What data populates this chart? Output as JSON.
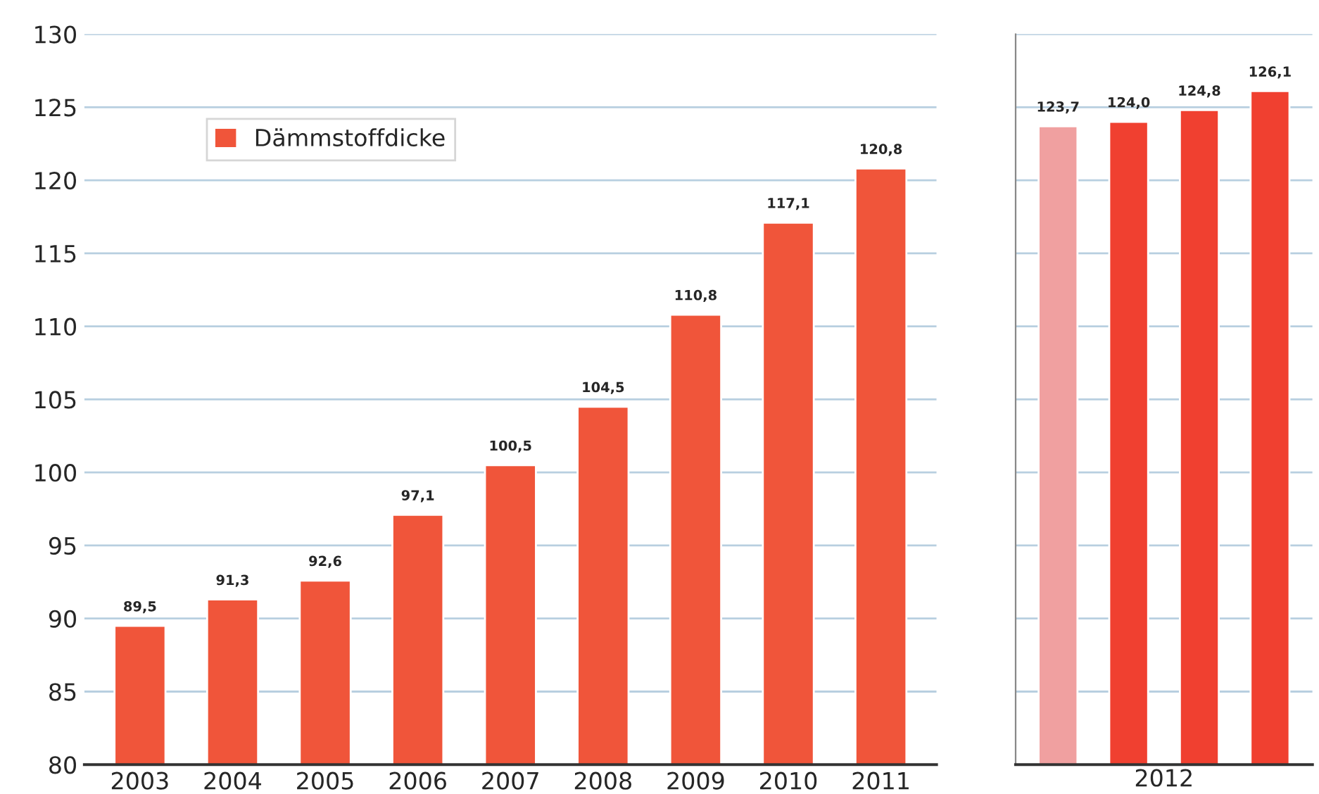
{
  "chart_data": [
    {
      "type": "bar",
      "categories": [
        "2003",
        "2004",
        "2005",
        "2006",
        "2007",
        "2008",
        "2009",
        "2010",
        "2011"
      ],
      "series": [
        {
          "name": "Dämmstoffdicke",
          "color": "#f0553a",
          "values": [
            89.5,
            91.3,
            92.6,
            97.1,
            100.5,
            104.5,
            110.8,
            117.1,
            120.8
          ],
          "value_labels": [
            "89,5",
            "91,3",
            "92,6",
            "97,1",
            "100,5",
            "104,5",
            "110,8",
            "117,1",
            "120,8"
          ]
        }
      ],
      "ylim": [
        80,
        130
      ],
      "yticks": [
        80,
        85,
        90,
        95,
        100,
        105,
        110,
        115,
        120,
        125,
        130
      ],
      "grid": "y",
      "legend": "top left"
    },
    {
      "type": "bar",
      "categories": [
        null,
        null,
        null,
        null
      ],
      "xlabel": "2012",
      "series": [
        {
          "colors": [
            "#f0a0a0",
            "#f04030",
            "#f04030",
            "#f04030"
          ],
          "values": [
            123.7,
            124.0,
            124.8,
            126.1
          ],
          "value_labels": [
            "123,7",
            "124,0",
            "124,8",
            "126,1"
          ]
        }
      ],
      "ylim": [
        80,
        130
      ],
      "yticks": [
        80,
        85,
        90,
        95,
        100,
        105,
        110,
        115,
        120,
        125,
        130
      ],
      "grid": "y",
      "tick_labels": false
    }
  ]
}
